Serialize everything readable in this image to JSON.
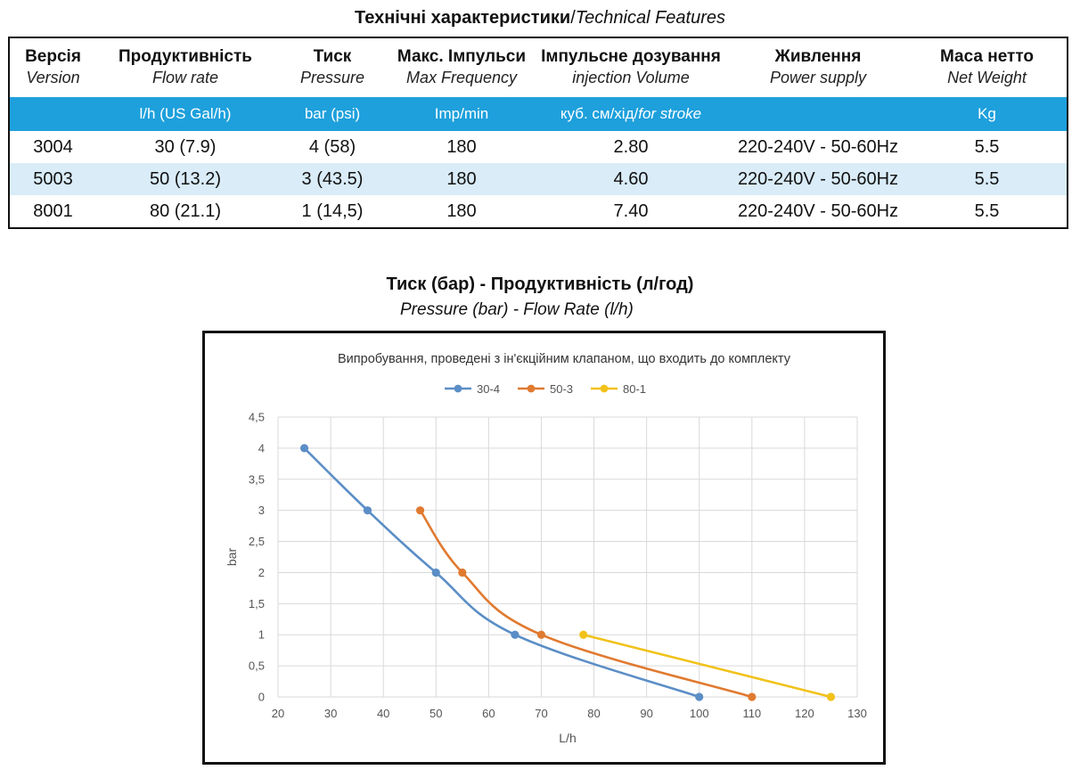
{
  "table": {
    "title_ua": "Технічні характеристики",
    "title_en": "Technical Features",
    "headers": [
      {
        "ua": "Версія",
        "en": "Version",
        "unit": ""
      },
      {
        "ua": "Продуктивність",
        "en": "Flow rate",
        "unit": "l/h (US Gal/h)"
      },
      {
        "ua": "Тиск",
        "en": "Pressure",
        "unit": "bar (psi)"
      },
      {
        "ua": "Макс. Імпульси",
        "en": "Max Frequency",
        "unit": "Imp/min"
      },
      {
        "ua": "Імпульсне дозування",
        "en": "injection Volume",
        "unit": "куб. см/хід/",
        "unit_italic": "for stroke"
      },
      {
        "ua": "Живлення",
        "en": "Power supply",
        "unit": ""
      },
      {
        "ua": "Маса нетто",
        "en": "Net Weight",
        "unit": "Kg"
      }
    ],
    "rows": [
      [
        "3004",
        "30 (7.9)",
        "4 (58)",
        "180",
        "2.80",
        "220-240V - 50-60Hz",
        "5.5"
      ],
      [
        "5003",
        "50 (13.2)",
        "3 (43.5)",
        "180",
        "4.60",
        "220-240V - 50-60Hz",
        "5.5"
      ],
      [
        "8001",
        "80 (21.1)",
        "1 (14,5)",
        "180",
        "7.40",
        "220-240V - 50-60Hz",
        "5.5"
      ]
    ],
    "colors": {
      "units_bar": "#1ea0dc",
      "stripe": "#d9ecf8"
    }
  },
  "chart_heading": {
    "title": "Тиск (бар) - Продуктивність (л/год)",
    "subtitle": "Pressure (bar) - Flow Rate (l/h)"
  },
  "chart_data": {
    "type": "line",
    "title": "Випробування, проведені з ін'єкційним клапаном, що входить до комплекту",
    "xlabel": "L/h",
    "ylabel": "bar",
    "xlim": [
      20,
      130
    ],
    "ylim": [
      0,
      4.5
    ],
    "x_ticks": [
      "20",
      "30",
      "40",
      "50",
      "60",
      "70",
      "80",
      "90",
      "100",
      "110",
      "120",
      "130"
    ],
    "y_ticks": [
      "0",
      "0,5",
      "1",
      "1,5",
      "2",
      "2,5",
      "3",
      "3,5",
      "4",
      "4,5"
    ],
    "grid": true,
    "legend": "top",
    "series": [
      {
        "name": "30-4",
        "color": "#5b8ec6",
        "points": [
          [
            25,
            4
          ],
          [
            37,
            3
          ],
          [
            50,
            2
          ],
          [
            65,
            1
          ],
          [
            100,
            0
          ]
        ]
      },
      {
        "name": "50-3",
        "color": "#e07a30",
        "points": [
          [
            47,
            3
          ],
          [
            55,
            2
          ],
          [
            70,
            1
          ],
          [
            110,
            0
          ]
        ]
      },
      {
        "name": "80-1",
        "color": "#f2c21b",
        "points": [
          [
            78,
            1
          ],
          [
            125,
            0
          ]
        ]
      }
    ]
  }
}
